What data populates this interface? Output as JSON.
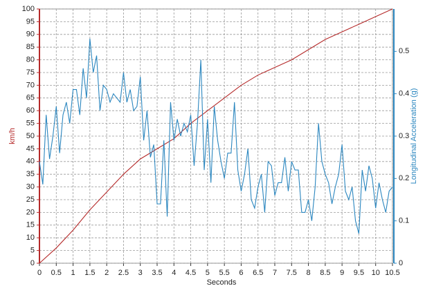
{
  "chart_data": {
    "type": "line",
    "x_label": "Seconds",
    "y_label": "km/h",
    "y2_label": "Longitudinal Acceleration (g)",
    "xlim": [
      0,
      10.5
    ],
    "xticks": [
      0,
      0.5,
      1,
      1.5,
      2,
      2.5,
      3,
      3.5,
      4,
      4.5,
      5,
      5.5,
      6,
      6.5,
      7,
      7.5,
      8,
      8.5,
      9,
      9.5,
      10,
      10.5
    ],
    "ylim": [
      0,
      100
    ],
    "yticks": [
      0,
      5,
      10,
      15,
      20,
      25,
      30,
      35,
      40,
      45,
      50,
      55,
      60,
      65,
      70,
      75,
      80,
      85,
      90,
      95,
      100
    ],
    "y2lim": [
      0,
      0.6
    ],
    "y2ticks": [
      0,
      0.1,
      0.2,
      0.3,
      0.4,
      0.5
    ],
    "grid": true,
    "series": [
      {
        "name": "km/h",
        "color": "#b52a2a",
        "axis": "y",
        "x": [
          0,
          0.5,
          1,
          1.5,
          2,
          2.5,
          3,
          3.5,
          4,
          4.5,
          5,
          5.5,
          6,
          6.5,
          7,
          7.5,
          8,
          8.5,
          9,
          9.5,
          10,
          10.5
        ],
        "values": [
          0,
          6,
          13,
          21,
          28,
          35,
          41,
          45,
          49,
          55,
          60,
          65,
          70,
          74,
          77,
          80,
          84,
          88,
          91,
          94,
          97,
          100
        ]
      },
      {
        "name": "Longitudinal Acceleration (g)",
        "color": "#2a86bf",
        "axis": "y2",
        "x": [
          0,
          0.1,
          0.2,
          0.3,
          0.4,
          0.5,
          0.6,
          0.7,
          0.8,
          0.9,
          1,
          1.1,
          1.2,
          1.3,
          1.4,
          1.5,
          1.6,
          1.7,
          1.8,
          1.9,
          2,
          2.1,
          2.2,
          2.3,
          2.4,
          2.5,
          2.6,
          2.7,
          2.8,
          2.9,
          3,
          3.1,
          3.2,
          3.3,
          3.4,
          3.5,
          3.6,
          3.7,
          3.8,
          3.9,
          4,
          4.1,
          4.2,
          4.3,
          4.4,
          4.5,
          4.6,
          4.7,
          4.8,
          4.9,
          5,
          5.1,
          5.2,
          5.3,
          5.4,
          5.5,
          5.6,
          5.7,
          5.8,
          5.9,
          6,
          6.1,
          6.2,
          6.3,
          6.4,
          6.5,
          6.6,
          6.7,
          6.8,
          6.9,
          7,
          7.1,
          7.2,
          7.3,
          7.4,
          7.5,
          7.6,
          7.7,
          7.8,
          7.9,
          8,
          8.1,
          8.2,
          8.3,
          8.4,
          8.5,
          8.6,
          8.7,
          8.8,
          8.9,
          9,
          9.1,
          9.2,
          9.3,
          9.4,
          9.5,
          9.6,
          9.7,
          9.8,
          9.9,
          10,
          10.1,
          10.2,
          10.3,
          10.4,
          10.5
        ],
        "values": [
          0.24,
          0.186,
          0.35,
          0.246,
          0.3,
          0.37,
          0.26,
          0.35,
          0.38,
          0.33,
          0.41,
          0.41,
          0.35,
          0.46,
          0.39,
          0.53,
          0.45,
          0.49,
          0.36,
          0.42,
          0.41,
          0.38,
          0.4,
          0.39,
          0.38,
          0.45,
          0.38,
          0.41,
          0.36,
          0.37,
          0.44,
          0.29,
          0.36,
          0.25,
          0.28,
          0.14,
          0.14,
          0.29,
          0.11,
          0.38,
          0.29,
          0.34,
          0.3,
          0.33,
          0.31,
          0.35,
          0.23,
          0.33,
          0.48,
          0.22,
          0.34,
          0.19,
          0.37,
          0.29,
          0.24,
          0.2,
          0.26,
          0.26,
          0.38,
          0.22,
          0.17,
          0.21,
          0.27,
          0.15,
          0.13,
          0.18,
          0.21,
          0.12,
          0.24,
          0.23,
          0.16,
          0.19,
          0.19,
          0.25,
          0.17,
          0.24,
          0.22,
          0.22,
          0.12,
          0.12,
          0.15,
          0.1,
          0.18,
          0.33,
          0.24,
          0.21,
          0.19,
          0.14,
          0.18,
          0.21,
          0.28,
          0.17,
          0.15,
          0.18,
          0.1,
          0.07,
          0.22,
          0.17,
          0.23,
          0.2,
          0.13,
          0.19,
          0.15,
          0.12,
          0.17,
          0.18
        ]
      }
    ]
  }
}
